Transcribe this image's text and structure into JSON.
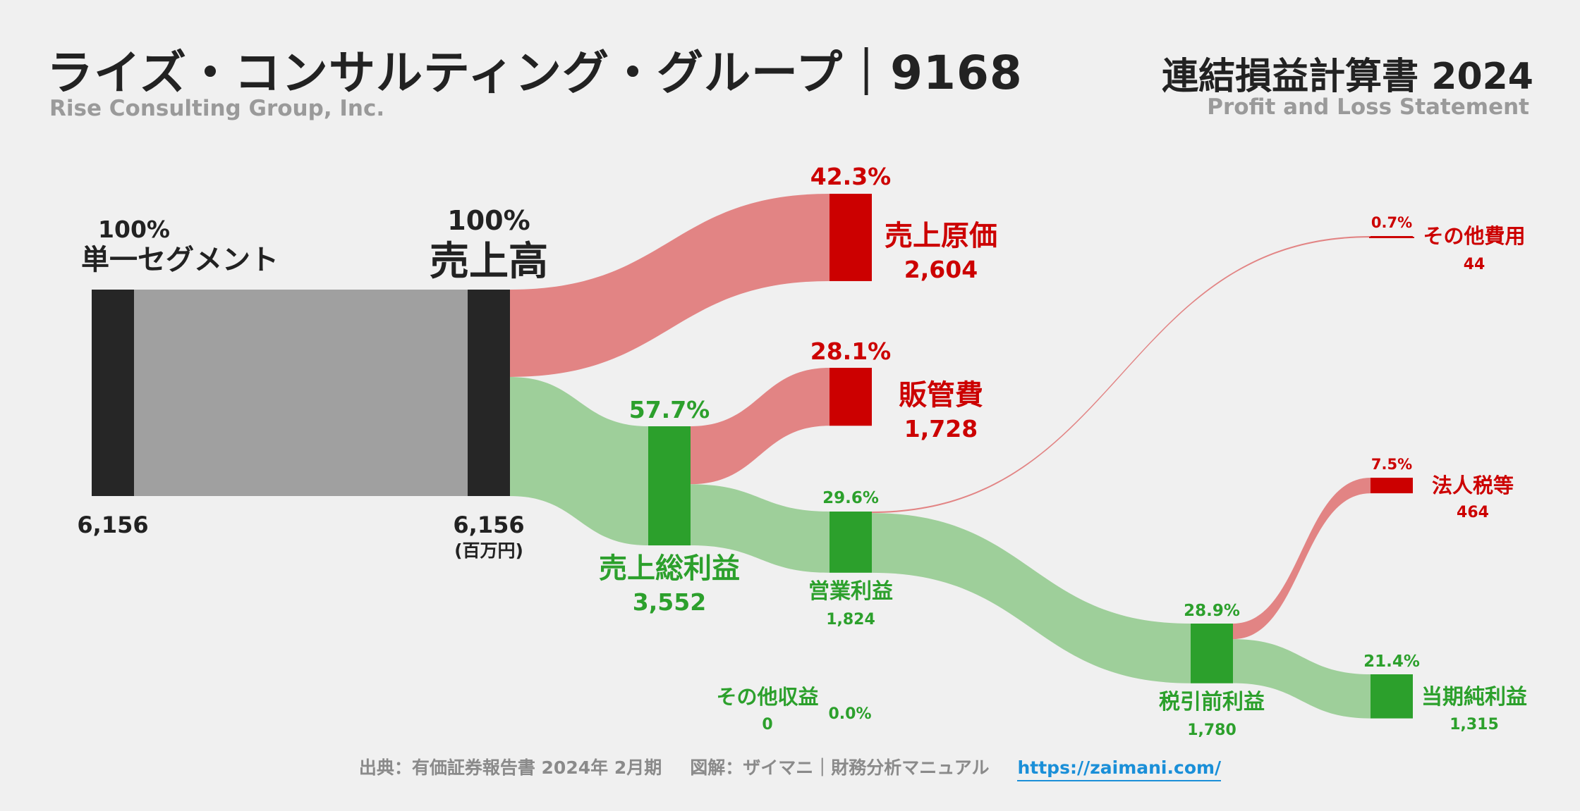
{
  "header": {
    "company_jp": "ライズ・コンサルティング・グループ｜9168",
    "company_en": "Rise Consulting Group, Inc.",
    "statement_jp": "連結損益計算書 2024",
    "statement_en": "Profit and Loss Statement"
  },
  "footer": {
    "source": "出典：有価証券報告書 2024年 2月期",
    "credit": "図解：ザイマニ｜財務分析マニュアル",
    "url": "https://zaimani.com/"
  },
  "colors": {
    "dark": "#262626",
    "gray_flow": "#a0a0a0",
    "green": "#2ca02c",
    "green_flow": "#9ecf9a",
    "red": "#cc0000",
    "red_flow": "#e28484"
  },
  "chart_data": {
    "type": "sankey",
    "unit": "(百万円)",
    "nodes": [
      {
        "id": "segment",
        "label": "単一セグメント",
        "value": 6156,
        "value_text": "6,156",
        "pct": "100%",
        "kind": "neutral"
      },
      {
        "id": "revenue",
        "label": "売上高",
        "value": 6156,
        "value_text": "6,156",
        "pct": "100%",
        "kind": "neutral"
      },
      {
        "id": "cogs",
        "label": "売上原価",
        "value": 2604,
        "value_text": "2,604",
        "pct": "42.3%",
        "kind": "cost"
      },
      {
        "id": "gross_profit",
        "label": "売上総利益",
        "value": 3552,
        "value_text": "3,552",
        "pct": "57.7%",
        "kind": "profit"
      },
      {
        "id": "sga",
        "label": "販管費",
        "value": 1728,
        "value_text": "1,728",
        "pct": "28.1%",
        "kind": "cost"
      },
      {
        "id": "operating_profit",
        "label": "営業利益",
        "value": 1824,
        "value_text": "1,824",
        "pct": "29.6%",
        "kind": "profit"
      },
      {
        "id": "other_expense",
        "label": "その他費用",
        "value": 44,
        "value_text": "44",
        "pct": "0.7%",
        "kind": "cost"
      },
      {
        "id": "other_income",
        "label": "その他収益",
        "value": 0,
        "value_text": "0",
        "pct": "0.0%",
        "kind": "profit"
      },
      {
        "id": "pretax_profit",
        "label": "税引前利益",
        "value": 1780,
        "value_text": "1,780",
        "pct": "28.9%",
        "kind": "profit"
      },
      {
        "id": "tax",
        "label": "法人税等",
        "value": 464,
        "value_text": "464",
        "pct": "7.5%",
        "kind": "cost"
      },
      {
        "id": "net_income",
        "label": "当期純利益",
        "value": 1315,
        "value_text": "1,315",
        "pct": "21.4%",
        "kind": "profit"
      }
    ],
    "links": [
      {
        "source": "segment",
        "target": "revenue",
        "value": 6156
      },
      {
        "source": "revenue",
        "target": "cogs",
        "value": 2604
      },
      {
        "source": "revenue",
        "target": "gross_profit",
        "value": 3552
      },
      {
        "source": "gross_profit",
        "target": "sga",
        "value": 1728
      },
      {
        "source": "gross_profit",
        "target": "operating_profit",
        "value": 1824
      },
      {
        "source": "operating_profit",
        "target": "other_expense",
        "value": 44
      },
      {
        "source": "operating_profit",
        "target": "pretax_profit",
        "value": 1780
      },
      {
        "source": "pretax_profit",
        "target": "tax",
        "value": 464
      },
      {
        "source": "pretax_profit",
        "target": "net_income",
        "value": 1315
      }
    ]
  }
}
